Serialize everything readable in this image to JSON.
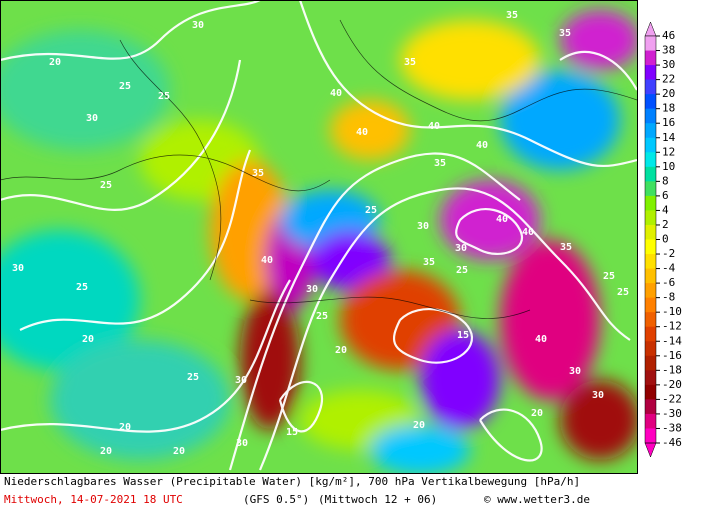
{
  "colorbar": {
    "ticks": [
      46,
      38,
      30,
      22,
      20,
      18,
      16,
      14,
      12,
      10,
      8,
      6,
      4,
      2,
      0,
      -2,
      -4,
      -6,
      -8,
      -10,
      -12,
      -14,
      -16,
      -18,
      -20,
      -22,
      -30,
      -38,
      -46
    ],
    "colors": [
      "#f0a0f0",
      "#d020d0",
      "#8000ff",
      "#4040ff",
      "#0050ff",
      "#0080ff",
      "#00a8ff",
      "#00c8ff",
      "#00e8e8",
      "#00e0a0",
      "#40e060",
      "#80f000",
      "#b0f000",
      "#e0f000",
      "#ffff00",
      "#ffe000",
      "#ffc000",
      "#ffa000",
      "#ff8000",
      "#f06000",
      "#e04000",
      "#c83000",
      "#b02000",
      "#a01010",
      "#900000",
      "#b00040",
      "#e00080",
      "#ff00c0"
    ]
  },
  "caption": {
    "line1": "Niederschlagbares Wasser (Precipitable Water) [kg/m²], 700 hPa Vertikalbewegung [hPa/h]",
    "date": "Mittwoch, 14-07-2021  18 UTC",
    "model": "(GFS 0.5°)",
    "run": "(Mittwoch 12 + 06)",
    "copyright": "© www.wetter3.de"
  },
  "contour_labels": [
    20,
    30,
    25,
    30,
    25,
    30,
    35,
    40,
    40,
    40,
    35,
    35,
    35,
    40,
    35,
    25,
    30,
    25,
    20,
    25,
    30,
    40,
    35,
    40,
    40,
    30,
    25,
    20,
    20,
    30,
    25,
    25,
    20,
    15,
    15,
    20,
    20,
    30,
    40,
    35,
    30,
    25,
    20,
    30,
    25
  ]
}
